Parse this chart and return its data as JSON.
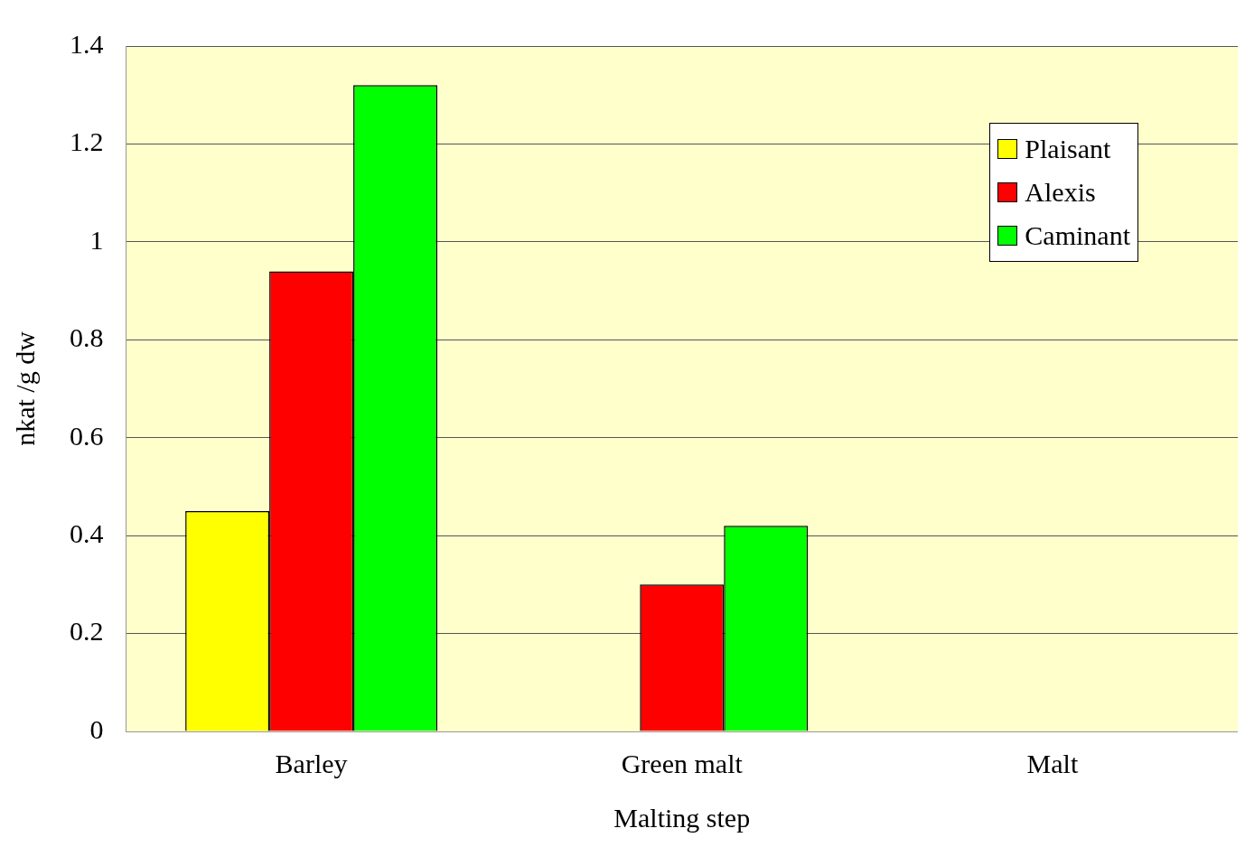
{
  "chart_data": {
    "type": "bar",
    "xlabel": "Malting step",
    "ylabel": "nkat /g dw",
    "categories": [
      "Barley",
      "Green malt",
      "Malt"
    ],
    "series": [
      {
        "name": "Plaisant",
        "color": "#ffff00",
        "values": [
          0.45,
          0,
          0
        ]
      },
      {
        "name": "Alexis",
        "color": "#ff0000",
        "values": [
          0.94,
          0.3,
          0
        ]
      },
      {
        "name": "Caminant",
        "color": "#00ff00",
        "values": [
          1.32,
          0.42,
          0
        ]
      }
    ],
    "ylim": [
      0,
      1.4
    ],
    "yticks": [
      0,
      0.2,
      0.4,
      0.6,
      0.8,
      1,
      1.2,
      1.4
    ],
    "grid": "y",
    "legend": "top right"
  }
}
